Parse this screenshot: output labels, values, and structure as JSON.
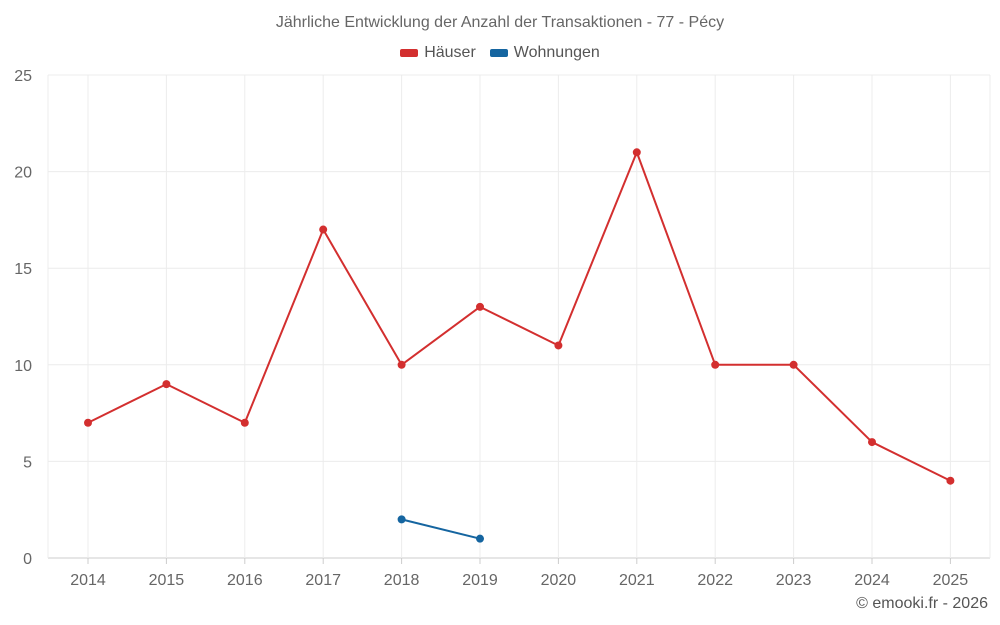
{
  "chart_data": {
    "type": "line",
    "title": "Jährliche Entwicklung der Anzahl der Transaktionen - 77 - Pécy",
    "categories": [
      "2014",
      "2015",
      "2016",
      "2017",
      "2018",
      "2019",
      "2020",
      "2021",
      "2022",
      "2023",
      "2024",
      "2025"
    ],
    "series": [
      {
        "name": "Häuser",
        "color": "#d32f2f",
        "values": [
          7,
          9,
          7,
          17,
          10,
          13,
          11,
          21,
          10,
          10,
          6,
          4
        ]
      },
      {
        "name": "Wohnungen",
        "color": "#1565a0",
        "values": [
          null,
          null,
          null,
          null,
          2,
          1,
          null,
          null,
          null,
          null,
          null,
          null
        ]
      }
    ],
    "ylim": [
      0,
      25
    ],
    "yticks": [
      "0",
      "5",
      "10",
      "15",
      "20",
      "25"
    ],
    "grid": true,
    "legend": "top-center"
  },
  "credit": "© emooki.fr - 2026"
}
